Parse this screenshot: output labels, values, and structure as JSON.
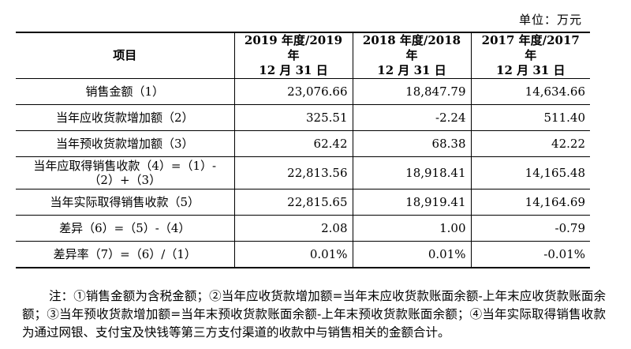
{
  "unit_label": "单位：万元",
  "table": {
    "header": {
      "item": "项目",
      "col_2019_line1": "2019 年度/2019 年",
      "col_2019_line2": "12 月 31 日",
      "col_2018_line1": "2018 年度/2018 年",
      "col_2018_line2": "12 月 31 日",
      "col_2017_line1": "2017 年度/2017 年",
      "col_2017_line2": "12 月 31 日"
    },
    "rows": [
      {
        "label": "销售金额（1）",
        "v2019": "23,076.66",
        "v2018": "18,847.79",
        "v2017": "14,634.66"
      },
      {
        "label": "当年应收货款增加额（2）",
        "v2019": "325.51",
        "v2018": "-2.24",
        "v2017": "511.40"
      },
      {
        "label": "当年预收货款增加额（3）",
        "v2019": "62.42",
        "v2018": "68.38",
        "v2017": "42.22"
      },
      {
        "label_line1": "当年应取得销售收款（4）=（1）-",
        "label_line2": "（2）+（3）",
        "v2019": "22,813.56",
        "v2018": "18,918.41",
        "v2017": "14,165.48"
      },
      {
        "label": "当年实际取得销售收款（5）",
        "v2019": "22,815.65",
        "v2018": "18,919.41",
        "v2017": "14,164.69"
      },
      {
        "label": "差异（6）=（5）-（4）",
        "v2019": "2.08",
        "v2018": "1.00",
        "v2017": "-0.79"
      },
      {
        "label": "差异率（7）=（6）/（1）",
        "v2019": "0.01%",
        "v2018": "0.01%",
        "v2017": "-0.01%"
      }
    ]
  },
  "note": "注：①销售金额为含税金额；②当年应收货款增加额=当年末应收货款账面余额-上年末应收货款账面余额；③当年预收货款增加额=当年末预收货款账面余额-上年末预收货款账面余额；④当年实际取得销售收款为通过网银、支付宝及快钱等第三方支付渠道的收款中与销售相关的金额合计。"
}
